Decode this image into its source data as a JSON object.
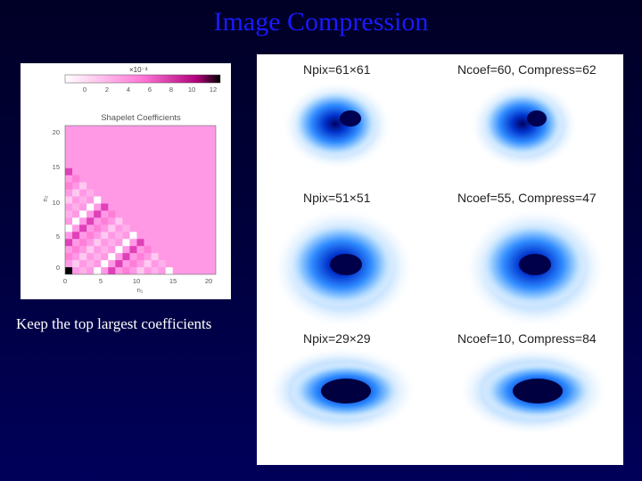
{
  "slide": {
    "title": "Image Compression",
    "caption": "Keep the top largest coefficients"
  },
  "coefficient_plot": {
    "title": "Shapelet Coefficients",
    "colorbar_multiplier": "×10⁻³",
    "colorbar_ticks": [
      "0",
      "2",
      "4",
      "6",
      "8",
      "10",
      "12"
    ],
    "x_ticks": [
      "0",
      "5",
      "10",
      "15",
      "20"
    ],
    "y_ticks": [
      "0",
      "5",
      "10",
      "15",
      "20"
    ],
    "x_label": "n₁",
    "y_label": "n₂"
  },
  "panels": {
    "row1": {
      "left_label": "Npix=61×61",
      "right_label": "Ncoef=60, Compress=62"
    },
    "row2": {
      "left_label": "Npix=51×51",
      "right_label": "Ncoef=55, Compress=47"
    },
    "row3": {
      "left_label": "Npix=29×29",
      "right_label": "Ncoef=10, Compress=84"
    }
  },
  "colors": {
    "title": "#1a1aff",
    "background": "#00003a",
    "coef_fill": "#ff99e6",
    "galaxy_dark": "#00009a"
  }
}
